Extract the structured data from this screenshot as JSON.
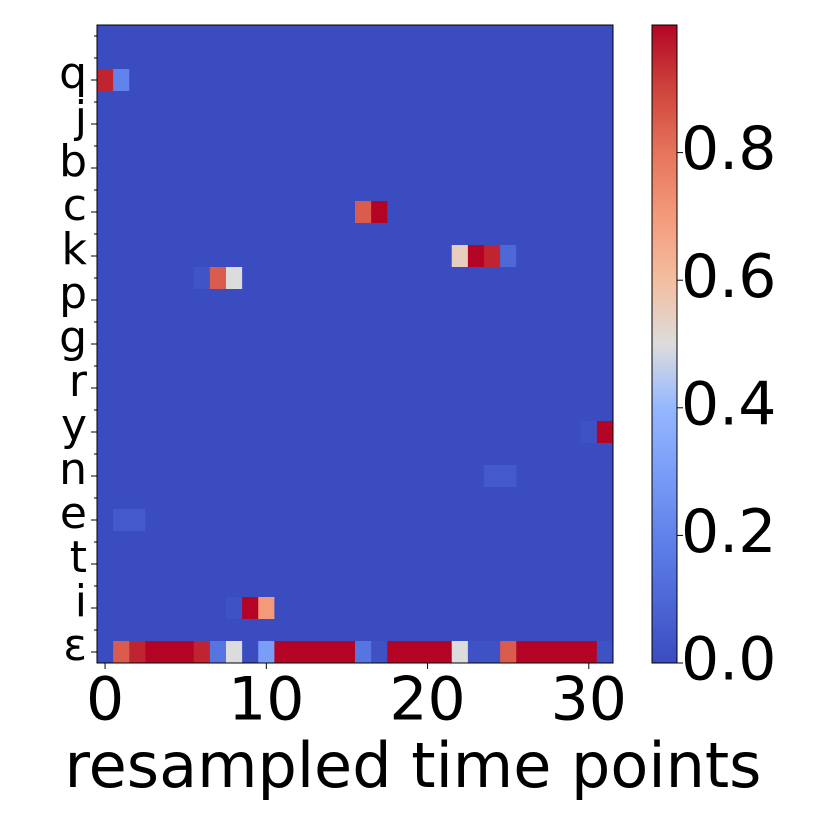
{
  "chart_data": {
    "type": "heatmap",
    "colormap": "coolwarm",
    "x_label": "resampled time points",
    "xlim": [
      -0.5,
      31.5
    ],
    "xticks": [
      0,
      10,
      20,
      30
    ],
    "categories": [
      null,
      null,
      "q",
      null,
      "j",
      null,
      "b",
      null,
      "c",
      null,
      "k",
      null,
      "p",
      null,
      "g",
      null,
      "r",
      null,
      "y",
      null,
      "n",
      null,
      "e",
      null,
      "t",
      null,
      "i",
      null,
      "ε"
    ],
    "values": [
      [
        0,
        0,
        0,
        0,
        0,
        0,
        0,
        0,
        0,
        0,
        0,
        0,
        0,
        0,
        0,
        0,
        0,
        0,
        0,
        0,
        0,
        0,
        0,
        0,
        0,
        0,
        0,
        0,
        0,
        0,
        0,
        0
      ],
      [
        0,
        0,
        0,
        0,
        0,
        0,
        0,
        0,
        0,
        0,
        0,
        0,
        0,
        0,
        0,
        0,
        0,
        0,
        0,
        0,
        0,
        0,
        0,
        0,
        0,
        0,
        0,
        0,
        0,
        0,
        0,
        0
      ],
      [
        0.95,
        0.2,
        0,
        0,
        0,
        0,
        0,
        0,
        0,
        0,
        0,
        0,
        0,
        0,
        0,
        0,
        0,
        0,
        0,
        0,
        0,
        0,
        0,
        0,
        0,
        0,
        0,
        0,
        0,
        0,
        0,
        0
      ],
      [
        0,
        0,
        0,
        0,
        0,
        0,
        0,
        0,
        0,
        0,
        0,
        0,
        0,
        0,
        0,
        0,
        0,
        0,
        0,
        0,
        0,
        0,
        0,
        0,
        0,
        0,
        0,
        0,
        0,
        0,
        0,
        0
      ],
      [
        0,
        0,
        0,
        0,
        0,
        0,
        0,
        0,
        0,
        0,
        0,
        0,
        0,
        0,
        0,
        0,
        0,
        0,
        0,
        0,
        0,
        0,
        0,
        0,
        0,
        0,
        0,
        0,
        0,
        0,
        0,
        0
      ],
      [
        0,
        0,
        0,
        0,
        0,
        0,
        0,
        0,
        0,
        0,
        0,
        0,
        0,
        0,
        0,
        0,
        0,
        0,
        0,
        0,
        0,
        0,
        0,
        0,
        0,
        0,
        0,
        0,
        0,
        0,
        0,
        0
      ],
      [
        0,
        0,
        0,
        0,
        0,
        0,
        0,
        0,
        0,
        0,
        0,
        0,
        0,
        0,
        0,
        0,
        0,
        0,
        0,
        0,
        0,
        0,
        0,
        0,
        0,
        0,
        0,
        0,
        0,
        0,
        0,
        0
      ],
      [
        0,
        0,
        0,
        0,
        0,
        0,
        0,
        0,
        0,
        0,
        0,
        0,
        0,
        0,
        0,
        0,
        0,
        0,
        0,
        0,
        0,
        0,
        0,
        0,
        0,
        0,
        0,
        0,
        0,
        0,
        0,
        0
      ],
      [
        0,
        0,
        0,
        0,
        0,
        0,
        0,
        0,
        0,
        0,
        0,
        0,
        0,
        0,
        0,
        0,
        0.85,
        1,
        0,
        0,
        0,
        0,
        0,
        0,
        0,
        0,
        0,
        0,
        0,
        0,
        0,
        0
      ],
      [
        0,
        0,
        0,
        0,
        0,
        0,
        0,
        0,
        0,
        0,
        0,
        0,
        0,
        0,
        0,
        0,
        0,
        0,
        0,
        0,
        0,
        0,
        0,
        0,
        0,
        0,
        0,
        0,
        0,
        0,
        0,
        0
      ],
      [
        0,
        0,
        0,
        0,
        0,
        0,
        0,
        0,
        0,
        0,
        0,
        0,
        0,
        0,
        0,
        0,
        0,
        0,
        0,
        0,
        0,
        0,
        0.55,
        1,
        0.95,
        0.1,
        0,
        0,
        0,
        0,
        0,
        0
      ],
      [
        0,
        0,
        0,
        0,
        0,
        0,
        0.03,
        0.85,
        0.5,
        0,
        0,
        0,
        0,
        0,
        0,
        0,
        0,
        0,
        0,
        0,
        0,
        0,
        0,
        0,
        0,
        0,
        0,
        0,
        0,
        0,
        0,
        0
      ],
      [
        0,
        0,
        0,
        0,
        0,
        0,
        0,
        0,
        0,
        0,
        0,
        0,
        0,
        0,
        0,
        0,
        0,
        0,
        0,
        0,
        0,
        0,
        0,
        0,
        0,
        0,
        0,
        0,
        0,
        0,
        0,
        0
      ],
      [
        0,
        0,
        0,
        0,
        0,
        0,
        0,
        0,
        0,
        0,
        0,
        0,
        0,
        0,
        0,
        0,
        0,
        0,
        0,
        0,
        0,
        0,
        0,
        0,
        0,
        0,
        0,
        0,
        0,
        0,
        0,
        0
      ],
      [
        0,
        0,
        0,
        0,
        0,
        0,
        0,
        0,
        0,
        0,
        0,
        0,
        0,
        0,
        0,
        0,
        0,
        0,
        0,
        0,
        0,
        0,
        0,
        0,
        0,
        0,
        0,
        0,
        0,
        0,
        0,
        0
      ],
      [
        0,
        0,
        0,
        0,
        0,
        0,
        0,
        0,
        0,
        0,
        0,
        0,
        0,
        0,
        0,
        0,
        0,
        0,
        0,
        0,
        0,
        0,
        0,
        0,
        0,
        0,
        0,
        0,
        0,
        0,
        0,
        0
      ],
      [
        0,
        0,
        0,
        0,
        0,
        0,
        0,
        0,
        0,
        0,
        0,
        0,
        0,
        0,
        0,
        0,
        0,
        0,
        0,
        0,
        0,
        0,
        0,
        0,
        0,
        0,
        0,
        0,
        0,
        0,
        0,
        0
      ],
      [
        0,
        0,
        0,
        0,
        0,
        0,
        0,
        0,
        0,
        0,
        0,
        0,
        0,
        0,
        0,
        0,
        0,
        0,
        0,
        0,
        0,
        0,
        0,
        0,
        0,
        0,
        0,
        0,
        0,
        0,
        0,
        0
      ],
      [
        0,
        0,
        0,
        0,
        0,
        0,
        0,
        0,
        0,
        0,
        0,
        0,
        0,
        0,
        0,
        0,
        0,
        0,
        0,
        0,
        0,
        0,
        0,
        0,
        0,
        0,
        0,
        0,
        0,
        0,
        0.02,
        1
      ],
      [
        0,
        0,
        0,
        0,
        0,
        0,
        0,
        0,
        0,
        0,
        0,
        0,
        0,
        0,
        0,
        0,
        0,
        0,
        0,
        0,
        0,
        0,
        0,
        0,
        0,
        0,
        0,
        0,
        0,
        0,
        0,
        0
      ],
      [
        0,
        0,
        0,
        0,
        0,
        0,
        0,
        0,
        0,
        0,
        0,
        0,
        0,
        0,
        0,
        0,
        0,
        0,
        0,
        0,
        0,
        0,
        0,
        0,
        0.05,
        0.05,
        0,
        0,
        0,
        0,
        0,
        0
      ],
      [
        0,
        0,
        0,
        0,
        0,
        0,
        0,
        0,
        0,
        0,
        0,
        0,
        0,
        0,
        0,
        0,
        0,
        0,
        0,
        0,
        0,
        0,
        0,
        0,
        0,
        0,
        0,
        0,
        0,
        0,
        0,
        0
      ],
      [
        0,
        0.05,
        0.05,
        0,
        0,
        0,
        0,
        0,
        0,
        0,
        0,
        0,
        0,
        0,
        0,
        0,
        0,
        0,
        0,
        0,
        0,
        0,
        0,
        0,
        0,
        0,
        0,
        0,
        0,
        0,
        0,
        0
      ],
      [
        0,
        0,
        0,
        0,
        0,
        0,
        0,
        0,
        0,
        0,
        0,
        0,
        0,
        0,
        0,
        0,
        0,
        0,
        0,
        0,
        0,
        0,
        0,
        0,
        0,
        0,
        0,
        0,
        0,
        0,
        0,
        0
      ],
      [
        0,
        0,
        0,
        0,
        0,
        0,
        0,
        0,
        0,
        0,
        0,
        0,
        0,
        0,
        0,
        0,
        0,
        0,
        0,
        0,
        0,
        0,
        0,
        0,
        0,
        0,
        0,
        0,
        0,
        0,
        0,
        0
      ],
      [
        0,
        0,
        0,
        0,
        0,
        0,
        0,
        0,
        0,
        0,
        0,
        0,
        0,
        0,
        0,
        0,
        0,
        0,
        0,
        0,
        0,
        0,
        0,
        0,
        0,
        0,
        0,
        0,
        0,
        0,
        0,
        0
      ],
      [
        0,
        0,
        0,
        0,
        0,
        0,
        0,
        0,
        0.02,
        1,
        0.7,
        0,
        0,
        0,
        0,
        0,
        0,
        0,
        0,
        0,
        0,
        0,
        0,
        0,
        0,
        0,
        0,
        0,
        0,
        0,
        0,
        0
      ],
      [
        0,
        0,
        0,
        0,
        0,
        0,
        0,
        0,
        0,
        0,
        0,
        0,
        0,
        0,
        0,
        0,
        0,
        0,
        0,
        0,
        0,
        0,
        0,
        0,
        0,
        0,
        0,
        0,
        0,
        0,
        0,
        0
      ],
      [
        0,
        0.85,
        0.95,
        1,
        1,
        1,
        0.95,
        0.15,
        0.5,
        0,
        0.3,
        1,
        1,
        1,
        1,
        1,
        0.15,
        0.02,
        1,
        1,
        1,
        1,
        0.5,
        0.02,
        0.02,
        0.85,
        1,
        1,
        1,
        1,
        1,
        0.02
      ]
    ],
    "clim": [
      0,
      1
    ],
    "cticks": [
      {
        "value": 0,
        "label": "0.0"
      },
      0.2,
      0.4,
      0.6,
      0.8
    ]
  }
}
